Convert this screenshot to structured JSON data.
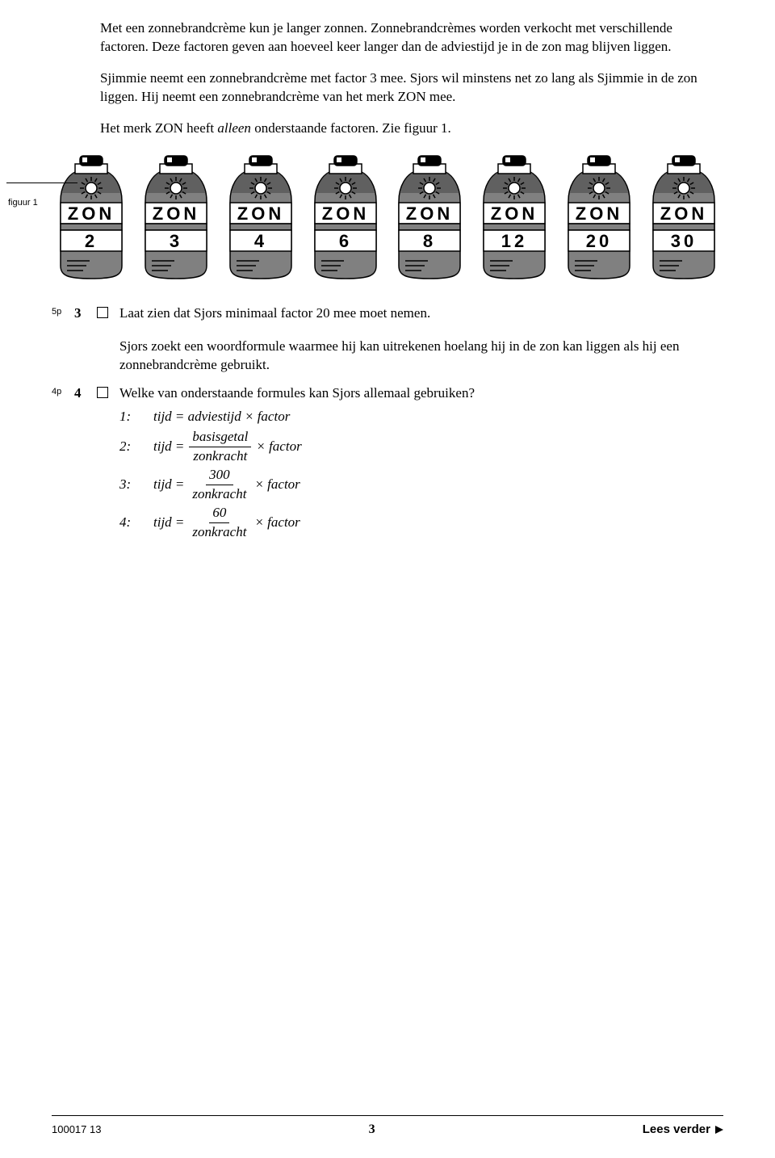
{
  "intro": {
    "p1": "Met een zonnebrandcrème kun je langer zonnen. Zonnebrandcrèmes worden verkocht met verschillende factoren. Deze factoren geven aan hoeveel keer langer dan de adviestijd je in de zon mag blijven liggen.",
    "p2": "Sjimmie neemt een zonnebrandcrème met factor 3 mee. Sjors wil minstens net zo lang als Sjimmie in de zon liggen. Hij neemt een zonnebrandcrème van het merk ZON mee.",
    "p3_a": "Het merk ZON heeft ",
    "p3_em": "alleen",
    "p3_b": " onderstaande factoren. Zie figuur 1."
  },
  "figuur_label": "figuur 1",
  "bottles": {
    "brand": "ZON",
    "factors": [
      "2",
      "3",
      "4",
      "6",
      "8",
      "12",
      "20",
      "30"
    ],
    "colors": {
      "body": "#808080",
      "dark": "#404040",
      "cap": "#000000",
      "white": "#ffffff",
      "stroke": "#000000"
    },
    "label_font": "Arial, Helvetica, sans-serif"
  },
  "questions": {
    "q3": {
      "points": "5p",
      "num": "3",
      "text": "Laat zien dat Sjors minimaal factor 20 mee moet nemen."
    },
    "q4": {
      "points": "4p",
      "num": "4",
      "intro": "Sjors zoekt een woordformule waarmee hij kan uitrekenen hoelang hij in de zon kan liggen als hij een zonnebrandcrème gebruikt.",
      "prompt": "Welke van onderstaande formules kan Sjors allemaal gebruiken?",
      "formulas": {
        "n1": "1:",
        "f1_lhs": "tijd = adviestijd × factor",
        "n2": "2:",
        "f_lhs": "tijd = ",
        "f2_num": "basisgetal",
        "f2_den": "zonkracht",
        "f_rhs": " × factor",
        "n3": "3:",
        "f3_num": "300",
        "f3_den": "zonkracht",
        "n4": "4:",
        "f4_num": "60",
        "f4_den": "zonkracht"
      }
    }
  },
  "footer": {
    "code": "100017  13",
    "page": "3",
    "lees": "Lees verder"
  }
}
